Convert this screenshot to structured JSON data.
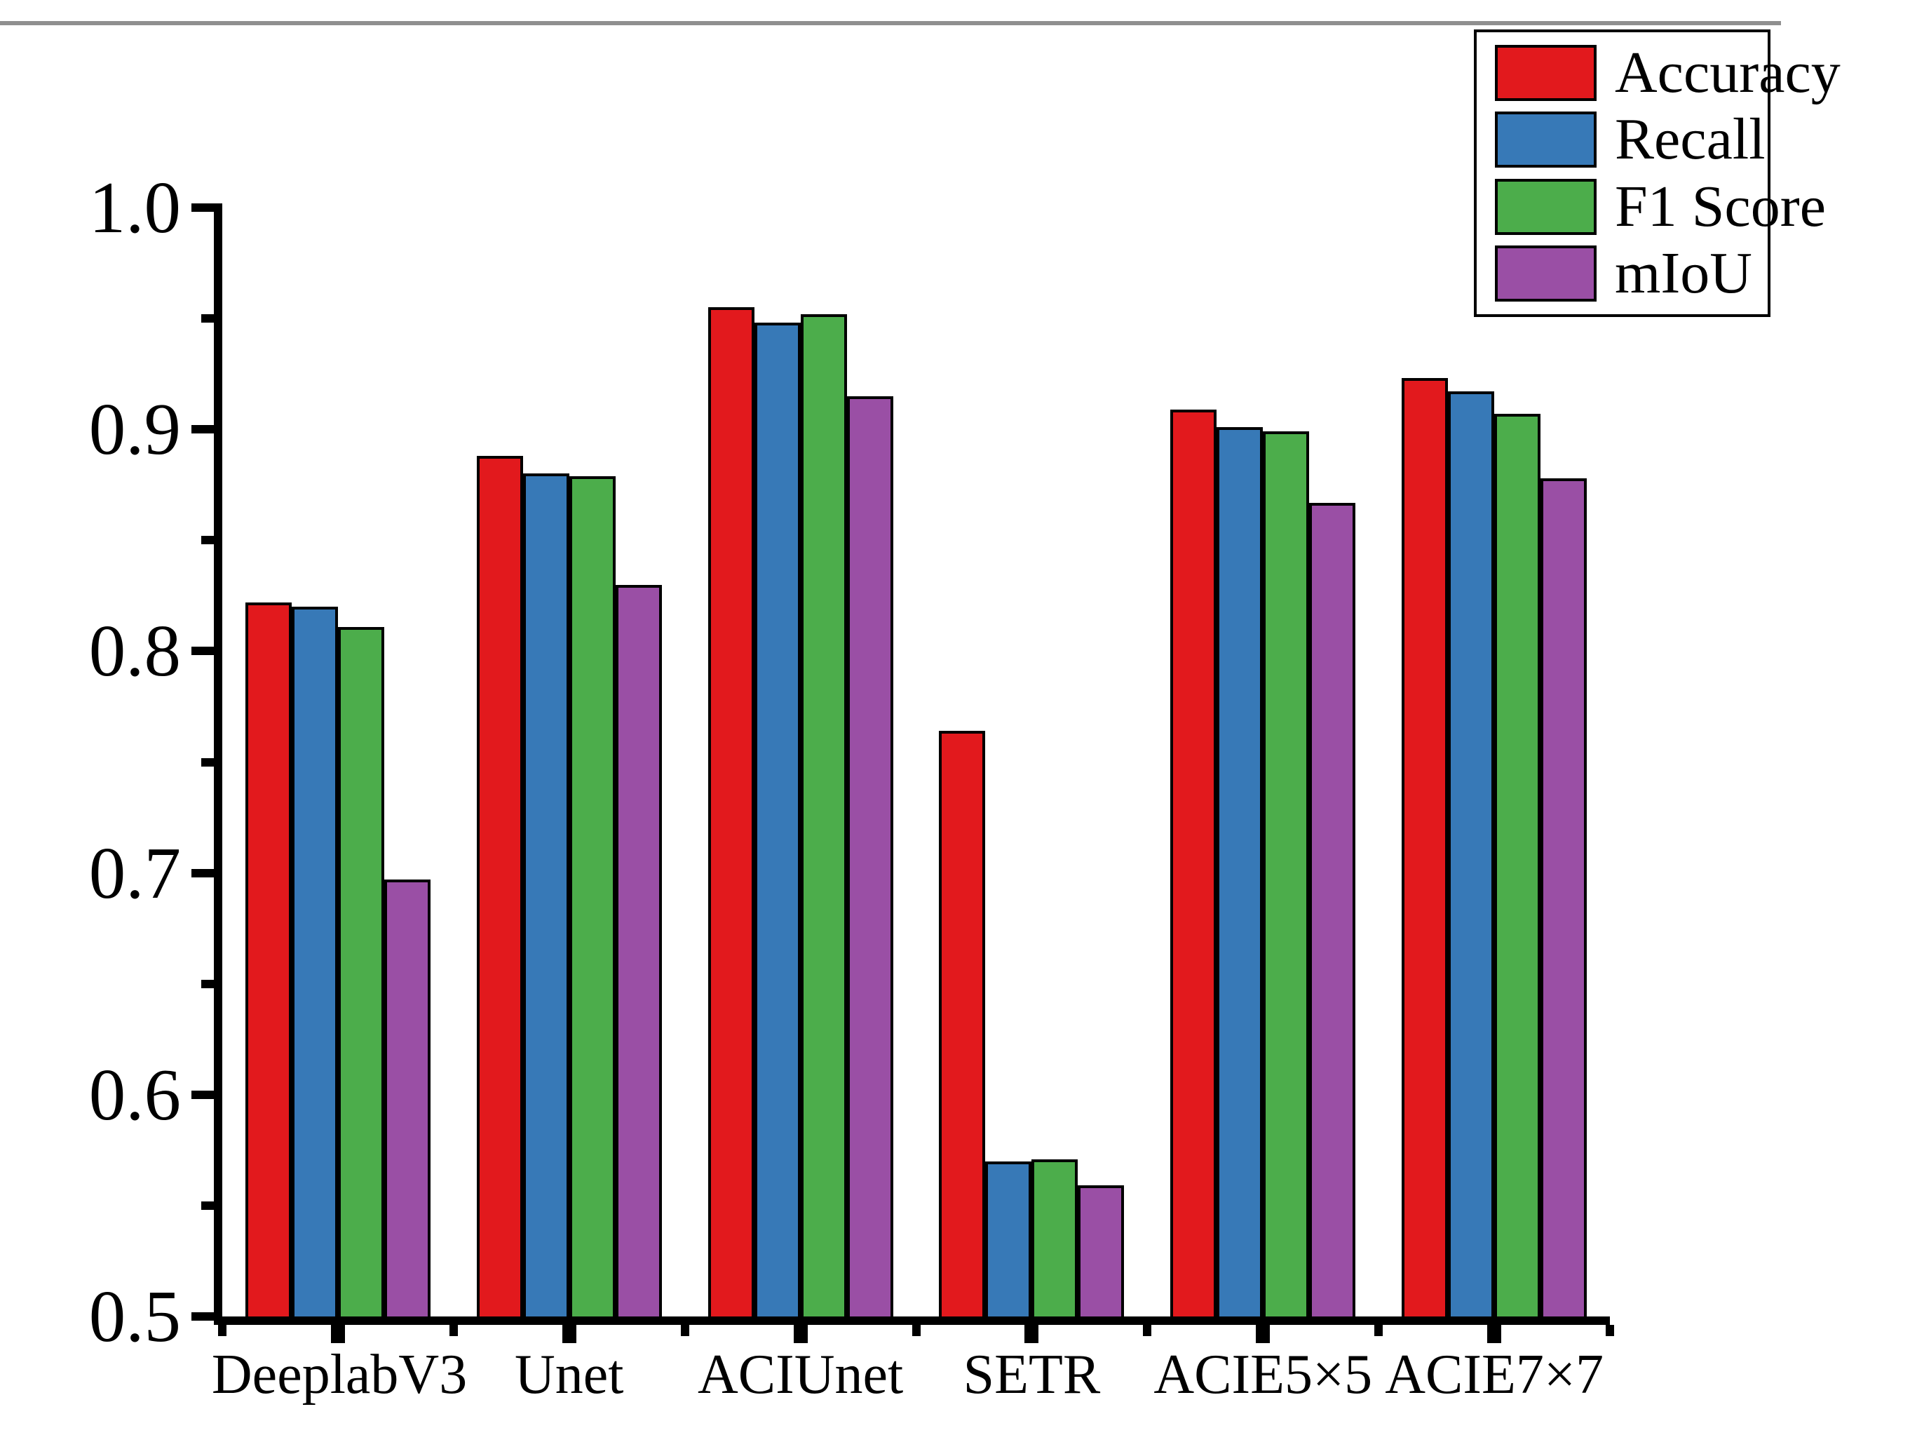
{
  "page": {
    "background": "#ffffff",
    "top_rule_color": "#8f8f8f",
    "axis_color": "#000000"
  },
  "chart_data": {
    "type": "bar",
    "title": "",
    "xlabel": "",
    "ylabel": "",
    "categories": [
      "DeeplabV3",
      "Unet",
      "ACIUnet",
      "SETR",
      "ACIE5×5",
      "ACIE7×7"
    ],
    "series": [
      {
        "name": "Accuracy",
        "color": "#e2191d",
        "values": [
          0.822,
          0.888,
          0.955,
          0.764,
          0.909,
          0.923
        ]
      },
      {
        "name": "Recall",
        "color": "#3779b7",
        "values": [
          0.82,
          0.88,
          0.948,
          0.57,
          0.901,
          0.917
        ]
      },
      {
        "name": "F1 Score",
        "color": "#4cad4b",
        "values": [
          0.811,
          0.879,
          0.952,
          0.571,
          0.899,
          0.907
        ]
      },
      {
        "name": "mIoU",
        "color": "#9a4fa5",
        "values": [
          0.697,
          0.83,
          0.915,
          0.559,
          0.867,
          0.878
        ]
      }
    ],
    "ylim": [
      0.5,
      1.0
    ],
    "y_major_step": 0.1,
    "y_minor_step": 0.05,
    "y_tick_labels": [
      "1.0",
      "0.9",
      "0.8",
      "0.7",
      "0.6",
      "0.5"
    ],
    "grid": false,
    "legend_position": "top-right",
    "bar_outline_color": "#000000"
  }
}
